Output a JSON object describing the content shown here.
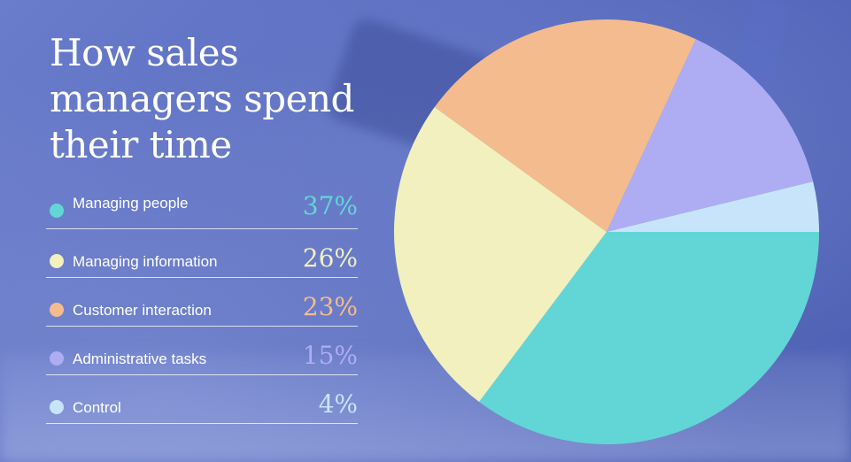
{
  "title": "How sales managers spend their time",
  "chart_data": {
    "type": "pie",
    "title": "How sales managers spend their time",
    "categories": [
      "Managing people",
      "Managing information",
      "Customer interaction",
      "Administrative tasks",
      "Control"
    ],
    "labels": [
      "37%",
      "26%",
      "23%",
      "15%",
      "4%"
    ],
    "values": [
      37,
      26,
      23,
      15,
      4
    ],
    "colors": [
      "#62d6d6",
      "#f2f0bf",
      "#f4bc8e",
      "#aeadf4",
      "#c8e4fa"
    ],
    "legend": "left"
  }
}
